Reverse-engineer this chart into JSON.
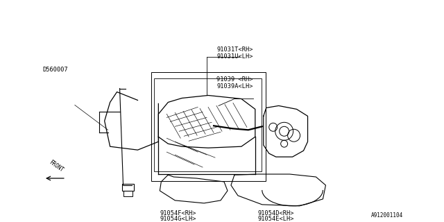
{
  "bg_color": "#ffffff",
  "line_color": "#000000",
  "part_number_bottom_right": "A912001104",
  "labels": {
    "top_center_1": "91031T<RH>",
    "top_center_2": "91031U<LH>",
    "mid_center_1": "91039 <RH>",
    "mid_center_2": "91039A<LH>",
    "bottom_left_1": "91054F<RH>",
    "bottom_left_2": "91054G<LH>",
    "bottom_right_1": "91054D<RH>",
    "bottom_right_2": "91054E<LH>",
    "side_label": "D560007",
    "front_label": "FRONT"
  }
}
